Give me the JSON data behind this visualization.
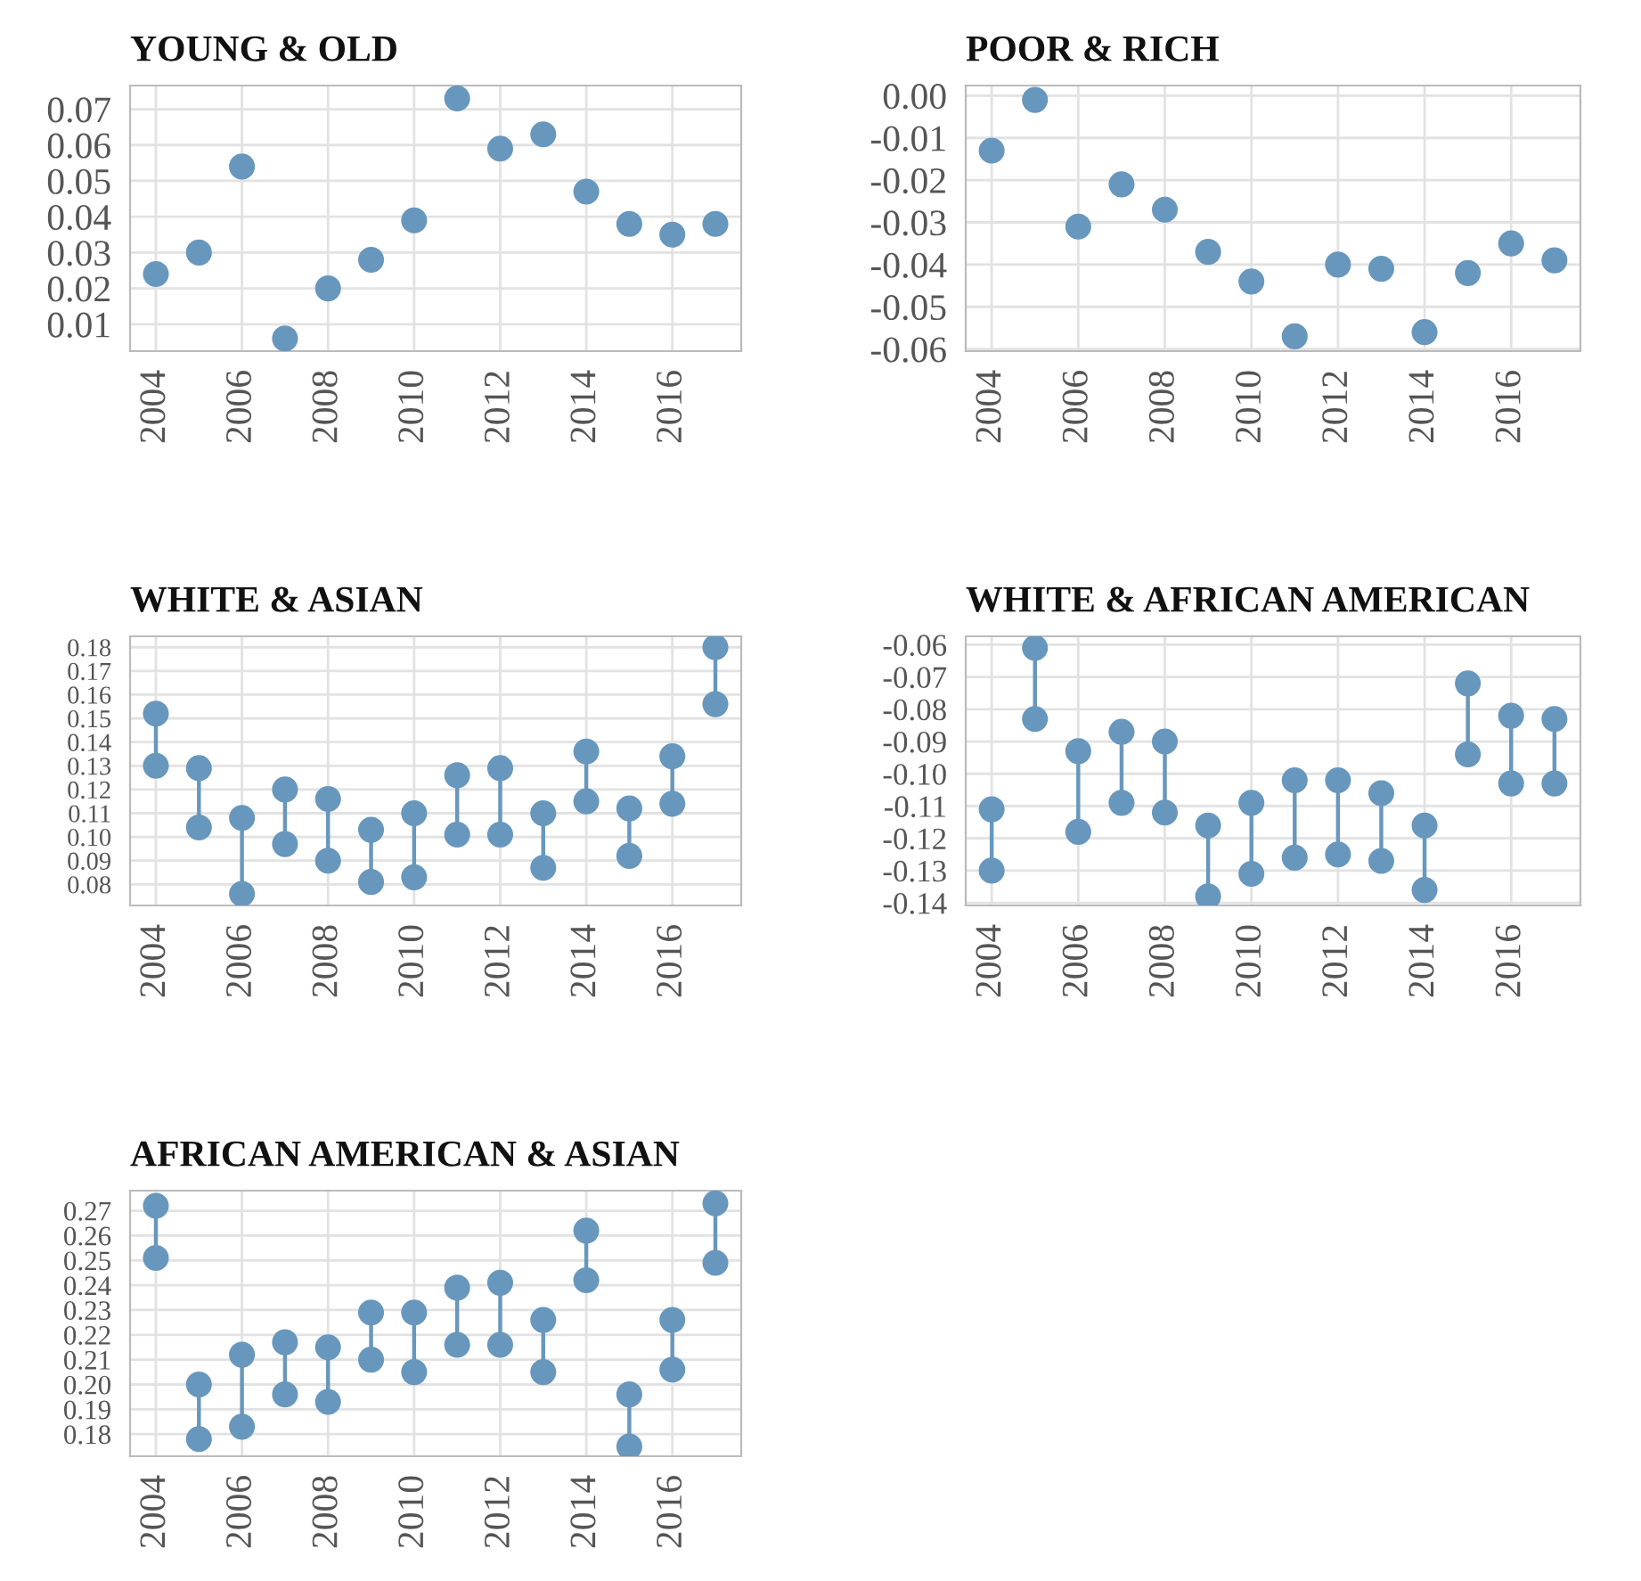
{
  "chart_data": [
    {
      "type": "scatter",
      "title": "YOUNG & OLD",
      "x": [
        2004,
        2005,
        2006,
        2007,
        2008,
        2009,
        2010,
        2011,
        2012,
        2013,
        2014,
        2015,
        2016,
        2017
      ],
      "series": [
        {
          "color": "#6897bd",
          "values": [
            0.024,
            0.03,
            0.054,
            0.006,
            0.02,
            0.028,
            0.039,
            0.073,
            0.059,
            0.063,
            0.047,
            0.038,
            0.035,
            0.038
          ]
        }
      ],
      "xlim": [
        2003.4,
        2017.6
      ],
      "xticks": [
        2004,
        2006,
        2008,
        2010,
        2012,
        2014,
        2016
      ],
      "ylim": [
        0.0025,
        0.0766
      ],
      "yticks": [
        0.01,
        0.02,
        0.03,
        0.04,
        0.05,
        0.06,
        0.07
      ],
      "grid": true,
      "marker": "circle"
    },
    {
      "type": "scatter",
      "title": "POOR & RICH",
      "x": [
        2004,
        2005,
        2006,
        2007,
        2008,
        2009,
        2010,
        2011,
        2012,
        2013,
        2014,
        2015,
        2016,
        2017
      ],
      "series": [
        {
          "color": "#6897bd",
          "values": [
            -0.013,
            -0.001,
            -0.031,
            -0.021,
            -0.027,
            -0.037,
            -0.044,
            -0.057,
            -0.04,
            -0.041,
            -0.056,
            -0.042,
            -0.035,
            -0.039
          ]
        }
      ],
      "xlim": [
        2003.4,
        2017.6
      ],
      "xticks": [
        2004,
        2006,
        2008,
        2010,
        2012,
        2014,
        2016
      ],
      "ylim": [
        -0.0605,
        0.0024
      ],
      "yticks": [
        {
          "value": 0,
          "label": "0.00"
        },
        {
          "value": -0.01,
          "label": "-0.01"
        },
        {
          "value": -0.02,
          "label": "-0.02"
        },
        {
          "value": -0.03,
          "label": "-0.03"
        },
        {
          "value": -0.04,
          "label": "-0.04"
        },
        {
          "value": -0.05,
          "label": "-0.05"
        },
        {
          "value": -0.06,
          "label": "-0.06"
        }
      ],
      "grid": true,
      "marker": "circle"
    },
    {
      "type": "scatter",
      "title": "WHITE & ASIAN",
      "x": [
        2004,
        2005,
        2006,
        2007,
        2008,
        2009,
        2010,
        2011,
        2012,
        2013,
        2014,
        2015,
        2016,
        2017
      ],
      "series": [
        {
          "color": "#6897bd",
          "values": [
            0.152,
            0.129,
            0.108,
            0.12,
            0.116,
            0.103,
            0.11,
            0.126,
            0.129,
            0.11,
            0.136,
            0.112,
            0.134,
            0.18
          ]
        },
        {
          "color": "#6897bd",
          "values": [
            0.13,
            0.104,
            0.076,
            0.097,
            0.09,
            0.081,
            0.083,
            0.101,
            0.101,
            0.087,
            0.115,
            0.092,
            0.114,
            0.156
          ]
        }
      ],
      "xlim": [
        2003.4,
        2017.6
      ],
      "xticks": [
        2004,
        2006,
        2008,
        2010,
        2012,
        2014,
        2016
      ],
      "ylim": [
        0.0711,
        0.1846
      ],
      "yticks": [
        {
          "value": 0.08,
          "label": "0.08"
        },
        {
          "value": 0.09,
          "label": "0.09"
        },
        {
          "value": 0.1,
          "label": "0.10"
        },
        {
          "value": 0.11,
          "label": "0.11"
        },
        {
          "value": 0.12,
          "label": "0.12"
        },
        {
          "value": 0.13,
          "label": "0.13"
        },
        {
          "value": 0.14,
          "label": "0.14"
        },
        {
          "value": 0.15,
          "label": "0.15"
        },
        {
          "value": 0.16,
          "label": "0.16"
        },
        {
          "value": 0.17,
          "label": "0.17"
        },
        {
          "value": 0.18,
          "label": "0.18"
        }
      ],
      "grid": true,
      "marker": "circle"
    },
    {
      "type": "scatter",
      "title": "WHITE & AFRICAN AMERICAN",
      "x": [
        2004,
        2005,
        2006,
        2007,
        2008,
        2009,
        2010,
        2011,
        2012,
        2013,
        2014,
        2015,
        2016,
        2017
      ],
      "series": [
        {
          "color": "#6897bd",
          "values": [
            -0.111,
            -0.061,
            -0.093,
            -0.087,
            -0.09,
            -0.116,
            -0.109,
            -0.102,
            -0.102,
            -0.106,
            -0.116,
            -0.072,
            -0.082,
            -0.083
          ]
        },
        {
          "color": "#6897bd",
          "values": [
            -0.13,
            -0.083,
            -0.118,
            -0.109,
            -0.112,
            -0.138,
            -0.131,
            -0.126,
            -0.125,
            -0.127,
            -0.136,
            -0.094,
            -0.103,
            -0.103
          ]
        }
      ],
      "xlim": [
        2003.4,
        2017.6
      ],
      "xticks": [
        2004,
        2006,
        2008,
        2010,
        2012,
        2014,
        2016
      ],
      "ylim": [
        -0.1408,
        -0.0574
      ],
      "yticks": [
        {
          "value": -0.06,
          "label": "-0.06"
        },
        {
          "value": -0.07,
          "label": "-0.07"
        },
        {
          "value": -0.08,
          "label": "-0.08"
        },
        {
          "value": -0.09,
          "label": "-0.09"
        },
        {
          "value": -0.1,
          "label": "-0.10"
        },
        {
          "value": -0.11,
          "label": "-0.11"
        },
        {
          "value": -0.12,
          "label": "-0.12"
        },
        {
          "value": -0.13,
          "label": "-0.13"
        },
        {
          "value": -0.14,
          "label": "-0.14"
        }
      ],
      "grid": true,
      "marker": "circle"
    },
    {
      "type": "scatter",
      "title": "AFRICAN AMERICAN & ASIAN",
      "x": [
        2004,
        2005,
        2006,
        2007,
        2008,
        2009,
        2010,
        2011,
        2012,
        2013,
        2014,
        2015,
        2016,
        2017
      ],
      "series": [
        {
          "color": "#6897bd",
          "values": [
            0.272,
            0.2,
            0.212,
            0.217,
            0.215,
            0.229,
            0.229,
            0.239,
            0.241,
            0.226,
            0.262,
            0.196,
            0.226,
            0.273
          ]
        },
        {
          "color": "#6897bd",
          "values": [
            0.251,
            0.178,
            0.183,
            0.196,
            0.193,
            0.21,
            0.205,
            0.216,
            0.216,
            0.205,
            0.242,
            0.175,
            0.206,
            0.249
          ]
        }
      ],
      "xlim": [
        2003.4,
        2017.6
      ],
      "xticks": [
        2004,
        2006,
        2008,
        2010,
        2012,
        2014,
        2016
      ],
      "ylim": [
        0.1711,
        0.2781
      ],
      "yticks": [
        {
          "value": 0.18,
          "label": "0.18"
        },
        {
          "value": 0.19,
          "label": "0.19"
        },
        {
          "value": 0.2,
          "label": "0.20"
        },
        {
          "value": 0.21,
          "label": "0.21"
        },
        {
          "value": 0.22,
          "label": "0.22"
        },
        {
          "value": 0.23,
          "label": "0.23"
        },
        {
          "value": 0.24,
          "label": "0.24"
        },
        {
          "value": 0.25,
          "label": "0.25"
        },
        {
          "value": 0.26,
          "label": "0.26"
        },
        {
          "value": 0.27,
          "label": "0.27"
        }
      ],
      "grid": true,
      "marker": "circle"
    }
  ]
}
